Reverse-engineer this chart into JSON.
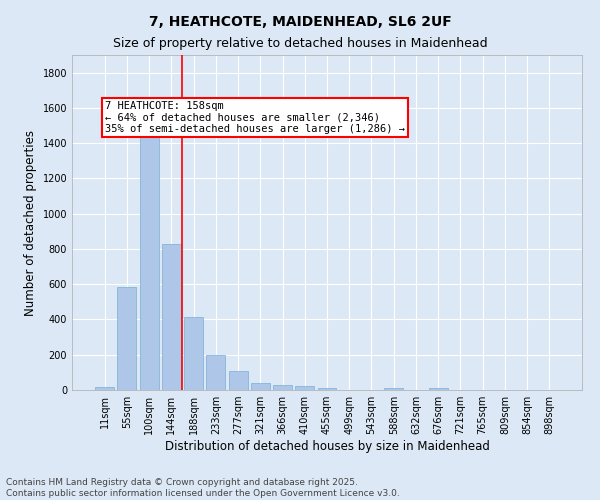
{
  "title1": "7, HEATHCOTE, MAIDENHEAD, SL6 2UF",
  "title2": "Size of property relative to detached houses in Maidenhead",
  "xlabel": "Distribution of detached houses by size in Maidenhead",
  "ylabel": "Number of detached properties",
  "categories": [
    "11sqm",
    "55sqm",
    "100sqm",
    "144sqm",
    "188sqm",
    "233sqm",
    "277sqm",
    "321sqm",
    "366sqm",
    "410sqm",
    "455sqm",
    "499sqm",
    "543sqm",
    "588sqm",
    "632sqm",
    "676sqm",
    "721sqm",
    "765sqm",
    "809sqm",
    "854sqm",
    "898sqm"
  ],
  "values": [
    15,
    585,
    1475,
    830,
    415,
    200,
    105,
    38,
    30,
    20,
    10,
    0,
    0,
    12,
    0,
    10,
    0,
    0,
    0,
    0,
    0
  ],
  "bar_color": "#aec6e8",
  "bar_edgecolor": "#7aafd4",
  "vline_x": 3.5,
  "vline_color": "red",
  "annotation_text": "7 HEATHCOTE: 158sqm\n← 64% of detached houses are smaller (2,346)\n35% of semi-detached houses are larger (1,286) →",
  "annotation_box_color": "white",
  "annotation_box_edgecolor": "red",
  "ylim": [
    0,
    1900
  ],
  "yticks": [
    0,
    200,
    400,
    600,
    800,
    1000,
    1200,
    1400,
    1600,
    1800
  ],
  "footer": "Contains HM Land Registry data © Crown copyright and database right 2025.\nContains public sector information licensed under the Open Government Licence v3.0.",
  "bg_color": "#dce8f5",
  "grid_color": "white",
  "title_fontsize": 10,
  "subtitle_fontsize": 9,
  "axis_label_fontsize": 8.5,
  "tick_fontsize": 7,
  "footer_fontsize": 6.5,
  "annot_fontsize": 7.5
}
